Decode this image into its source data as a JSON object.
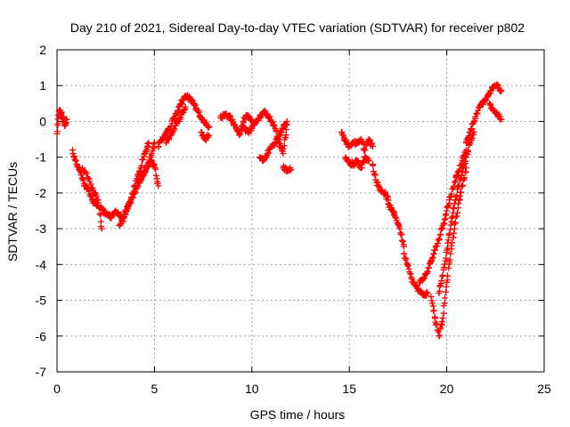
{
  "chart_data": {
    "type": "scatter",
    "title": "Day 210 of 2021, Sidereal Day-to-day VTEC variation (SDTVAR) for receiver p802",
    "xlabel": "GPS time / hours",
    "ylabel": "SDTVAR / TECUs",
    "xlim": [
      0,
      25
    ],
    "ylim": [
      -7,
      2
    ],
    "xticks": [
      0,
      5,
      10,
      15,
      20,
      25
    ],
    "yticks": [
      -7,
      -6,
      -5,
      -4,
      -3,
      -2,
      -1,
      0,
      1,
      2
    ],
    "grid": true,
    "marker": "+",
    "color": "#ff0000",
    "segments": [
      {
        "x": [
          0.0,
          0.1,
          0.2,
          0.3,
          0.4,
          0.5
        ],
        "y": [
          -0.35,
          0.3,
          0.25,
          0.1,
          -0.1,
          0.05
        ]
      },
      {
        "x": [
          0.8,
          1.0,
          1.2,
          1.4,
          1.6,
          1.8,
          2.0,
          2.2,
          2.4,
          2.6,
          2.8,
          3.0,
          3.2,
          3.4
        ],
        "y": [
          -0.8,
          -1.2,
          -1.4,
          -1.8,
          -1.9,
          -2.2,
          -2.3,
          -2.4,
          -2.5,
          -2.6,
          -2.7,
          -2.5,
          -2.6,
          -2.8
        ]
      },
      {
        "x": [
          1.3,
          1.6,
          1.9,
          2.1,
          2.3
        ],
        "y": [
          -1.3,
          -1.6,
          -2.0,
          -2.2,
          -3.0
        ]
      },
      {
        "x": [
          3.5,
          3.7,
          3.9,
          4.1,
          4.3,
          4.5,
          4.7
        ],
        "y": [
          -2.6,
          -2.3,
          -2.0,
          -1.6,
          -1.3,
          -0.9,
          -0.6
        ]
      },
      {
        "x": [
          3.2,
          3.4,
          3.6,
          3.8,
          4.0,
          4.2,
          4.4,
          4.6,
          4.8,
          5.0
        ],
        "y": [
          -2.9,
          -2.7,
          -2.4,
          -2.2,
          -2.0,
          -1.7,
          -1.5,
          -1.3,
          -1.0,
          -0.6
        ]
      },
      {
        "x": [
          4.2,
          4.4,
          4.6,
          4.8,
          5.0,
          5.2
        ],
        "y": [
          -1.7,
          -1.5,
          -1.3,
          -1.1,
          -1.2,
          -1.8
        ]
      },
      {
        "x": [
          5.2,
          5.4,
          5.6,
          5.8,
          6.0,
          6.2,
          6.4
        ],
        "y": [
          -0.7,
          -0.5,
          -0.3,
          -0.2,
          0.1,
          0.3,
          0.6
        ]
      },
      {
        "x": [
          6.4,
          6.6,
          6.8,
          7.0,
          7.2,
          7.4,
          7.6,
          7.8
        ],
        "y": [
          0.5,
          0.7,
          0.65,
          0.5,
          0.3,
          0.1,
          -0.05,
          -0.15
        ]
      },
      {
        "x": [
          5.6,
          5.8,
          6.0,
          6.2,
          6.4,
          6.6
        ],
        "y": [
          -0.6,
          -0.4,
          -0.2,
          0.0,
          0.2,
          0.4
        ]
      },
      {
        "x": [
          7.4,
          7.6,
          7.8
        ],
        "y": [
          -0.3,
          -0.5,
          -0.4
        ]
      },
      {
        "x": [
          8.4,
          8.6,
          8.8,
          9.0,
          9.2,
          9.4,
          9.6,
          9.8,
          10.0
        ],
        "y": [
          0.1,
          0.2,
          0.15,
          0.05,
          -0.2,
          -0.35,
          0.1,
          0.15,
          0.05
        ]
      },
      {
        "x": [
          9.6,
          9.8,
          10.0,
          10.2,
          10.4,
          10.6,
          10.8,
          11.0,
          11.2,
          11.4,
          11.6,
          11.8
        ],
        "y": [
          -0.2,
          -0.3,
          -0.2,
          0.0,
          0.1,
          0.25,
          0.2,
          0.0,
          -0.2,
          -0.6,
          -0.9,
          -0.1
        ]
      },
      {
        "x": [
          10.4,
          10.6,
          10.8,
          11.0,
          11.2,
          11.4,
          11.6,
          11.8
        ],
        "y": [
          -1.0,
          -1.1,
          -0.9,
          -0.7,
          -0.6,
          -0.4,
          -0.2,
          0.0
        ]
      },
      {
        "x": [
          11.6,
          11.8,
          12.0
        ],
        "y": [
          -1.3,
          -1.35,
          -1.35
        ]
      },
      {
        "x": [
          14.6,
          14.8,
          15.0,
          15.2,
          15.4,
          15.6,
          15.8,
          16.0,
          16.2
        ],
        "y": [
          -0.3,
          -0.55,
          -0.7,
          -0.6,
          -0.6,
          -0.5,
          -0.8,
          -0.5,
          -0.7
        ]
      },
      {
        "x": [
          14.8,
          15.0,
          15.2,
          15.4,
          15.6,
          15.8,
          16.0
        ],
        "y": [
          -1.0,
          -1.15,
          -1.2,
          -1.1,
          -1.3,
          -1.0,
          -1.1
        ]
      },
      {
        "x": [
          16.2,
          16.4,
          16.6,
          16.8,
          17.0
        ],
        "y": [
          -1.2,
          -1.7,
          -1.9,
          -2.0,
          -2.2
        ]
      },
      {
        "x": [
          17.0,
          17.2,
          17.4,
          17.6,
          17.8
        ],
        "y": [
          -2.3,
          -2.5,
          -2.7,
          -3.0,
          -3.5
        ]
      },
      {
        "x": [
          17.8,
          18.0,
          18.2,
          18.4,
          18.6,
          18.8,
          19.0
        ],
        "y": [
          -3.7,
          -4.0,
          -4.4,
          -4.6,
          -4.75,
          -4.85,
          -4.8
        ]
      },
      {
        "x": [
          18.6,
          18.8,
          19.0,
          19.2,
          19.4,
          19.6,
          19.8,
          20.0,
          20.2,
          20.4,
          20.6,
          20.8,
          21.0
        ],
        "y": [
          -4.5,
          -4.4,
          -4.2,
          -3.9,
          -3.6,
          -3.3,
          -2.9,
          -2.5,
          -2.1,
          -1.7,
          -1.4,
          -1.1,
          -0.8
        ]
      },
      {
        "x": [
          19.2,
          19.4,
          19.6,
          19.8,
          20.0,
          20.2,
          20.4,
          20.6,
          20.8,
          21.0
        ],
        "y": [
          -4.9,
          -5.5,
          -6.0,
          -5.5,
          -4.5,
          -3.7,
          -3.0,
          -2.3,
          -1.8,
          -1.3
        ]
      },
      {
        "x": [
          19.6,
          19.8,
          20.0,
          20.2,
          20.4,
          20.6,
          20.8,
          21.0,
          21.2,
          21.4
        ],
        "y": [
          -4.8,
          -4.3,
          -3.6,
          -2.9,
          -2.3,
          -1.8,
          -1.4,
          -1.0,
          -0.6,
          -0.3
        ]
      },
      {
        "x": [
          21.0,
          21.2,
          21.4,
          21.6,
          21.8,
          22.0,
          22.2,
          22.4,
          22.6,
          22.8
        ],
        "y": [
          -0.6,
          -0.3,
          0.0,
          0.3,
          0.5,
          0.6,
          0.8,
          0.95,
          1.0,
          0.85
        ]
      },
      {
        "x": [
          22.2,
          22.4,
          22.6,
          22.8
        ],
        "y": [
          0.5,
          0.3,
          0.2,
          0.05
        ]
      }
    ]
  }
}
